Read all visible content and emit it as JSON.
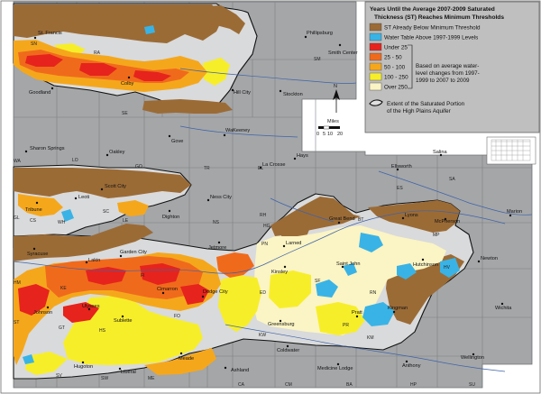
{
  "legend": {
    "title_line1": "Years Until the Average 2007-2009 Saturated",
    "title_line2": "Thickness (ST) Reaches Minimum Thresholds",
    "items": [
      {
        "label": "ST Already Below Minimum Threshold",
        "color": "#9b6b36"
      },
      {
        "label": "Water Table Above 1997-1999 Levels",
        "color": "#39b3e6"
      },
      {
        "label": "Under 25",
        "color": "#e6231d"
      },
      {
        "label": "25 - 50",
        "color": "#f06a1c"
      },
      {
        "label": "50 - 100",
        "color": "#f5a71c"
      },
      {
        "label": "100 - 250",
        "color": "#f7ee2a"
      },
      {
        "label": "Over 250",
        "color": "#fbf4c4"
      }
    ],
    "note_line1": "Based on average water-",
    "note_line2": "level changes from 1997-",
    "note_line3": "1999 to 2007 to 2009",
    "extent_line1": "Extent of the Saturated Portion",
    "extent_line2": "of the High Plains Aquifer"
  },
  "north_label": "N",
  "scale": {
    "title": "Miles",
    "ticks": [
      "0",
      "5",
      "10",
      "20"
    ]
  },
  "colors": {
    "county": "#a4a6a8",
    "county_line": "#7d8082",
    "river": "#3f63a8",
    "frame": "#6a6a6a"
  },
  "towns": [
    {
      "id": "st-francis",
      "name": "St. Francis"
    },
    {
      "id": "phillipsburg",
      "name": "Phillipsburg"
    },
    {
      "id": "smith-center",
      "name": "Smith Center"
    },
    {
      "id": "goodland",
      "name": "Goodland"
    },
    {
      "id": "colby",
      "name": "Colby"
    },
    {
      "id": "hill-city",
      "name": "Hill City"
    },
    {
      "id": "stockton",
      "name": "Stockton"
    },
    {
      "id": "wakeeney",
      "name": "WaKeeney"
    },
    {
      "id": "hays",
      "name": "Hays"
    },
    {
      "id": "gove",
      "name": "Gove"
    },
    {
      "id": "sharon-springs",
      "name": "Sharon Springs"
    },
    {
      "id": "oakley",
      "name": "Oakley"
    },
    {
      "id": "tribune",
      "name": "Tribune"
    },
    {
      "id": "leoti",
      "name": "Leoti"
    },
    {
      "id": "scott-city",
      "name": "Scott City"
    },
    {
      "id": "dighton",
      "name": "Dighton"
    },
    {
      "id": "ness-city",
      "name": "Ness City"
    },
    {
      "id": "la-crosse",
      "name": "La Crosse"
    },
    {
      "id": "ellsworth",
      "name": "Ellsworth"
    },
    {
      "id": "salina",
      "name": "Salina"
    },
    {
      "id": "great-bend",
      "name": "Great Bend"
    },
    {
      "id": "lyons",
      "name": "Lyons"
    },
    {
      "id": "mcpherson",
      "name": "McPherson"
    },
    {
      "id": "marion",
      "name": "Marion"
    },
    {
      "id": "syracuse",
      "name": "Syracuse"
    },
    {
      "id": "lakin",
      "name": "Lakin"
    },
    {
      "id": "garden-city",
      "name": "Garden City"
    },
    {
      "id": "jetmore",
      "name": "Jetmore"
    },
    {
      "id": "larned",
      "name": "Larned"
    },
    {
      "id": "kinsley",
      "name": "Kinsley"
    },
    {
      "id": "st-john",
      "name": "Saint John"
    },
    {
      "id": "hutchinson",
      "name": "Hutchinson"
    },
    {
      "id": "newton",
      "name": "Newton"
    },
    {
      "id": "cimarron",
      "name": "Cimarron"
    },
    {
      "id": "dodge-city",
      "name": "Dodge City"
    },
    {
      "id": "johnson",
      "name": "Johnson"
    },
    {
      "id": "ulysses",
      "name": "Ulysses"
    },
    {
      "id": "sublette",
      "name": "Sublette"
    },
    {
      "id": "pratt",
      "name": "Pratt"
    },
    {
      "id": "kingman",
      "name": "Kingman"
    },
    {
      "id": "wichita",
      "name": "Wichita"
    },
    {
      "id": "greensburg",
      "name": "Greensburg"
    },
    {
      "id": "hugoton",
      "name": "Hugoton"
    },
    {
      "id": "liberal",
      "name": "Liberal"
    },
    {
      "id": "meade",
      "name": "Meade"
    },
    {
      "id": "ashland",
      "name": "Ashland"
    },
    {
      "id": "coldwater",
      "name": "Coldwater"
    },
    {
      "id": "medicine-lodge",
      "name": "Medicine Lodge"
    },
    {
      "id": "anthony",
      "name": "Anthony"
    },
    {
      "id": "wellington",
      "name": "Wellington"
    }
  ],
  "county_codes": [
    "RA",
    "SM",
    "WA",
    "LO",
    "GO",
    "TR",
    "EL",
    "GL",
    "LE",
    "NS",
    "RH",
    "BT",
    "HM",
    "KE",
    "FI",
    "PN",
    "SF",
    "RN",
    "HV",
    "ST",
    "GT",
    "HS",
    "FO",
    "ED",
    "KW",
    "PR",
    "SV",
    "SW",
    "ME",
    "CM",
    "CA",
    "KM",
    "BA",
    "HP",
    "SU",
    "SN",
    "SE",
    "MP",
    "SA",
    "ES",
    "SC",
    "WH",
    "HG",
    "CS"
  ]
}
